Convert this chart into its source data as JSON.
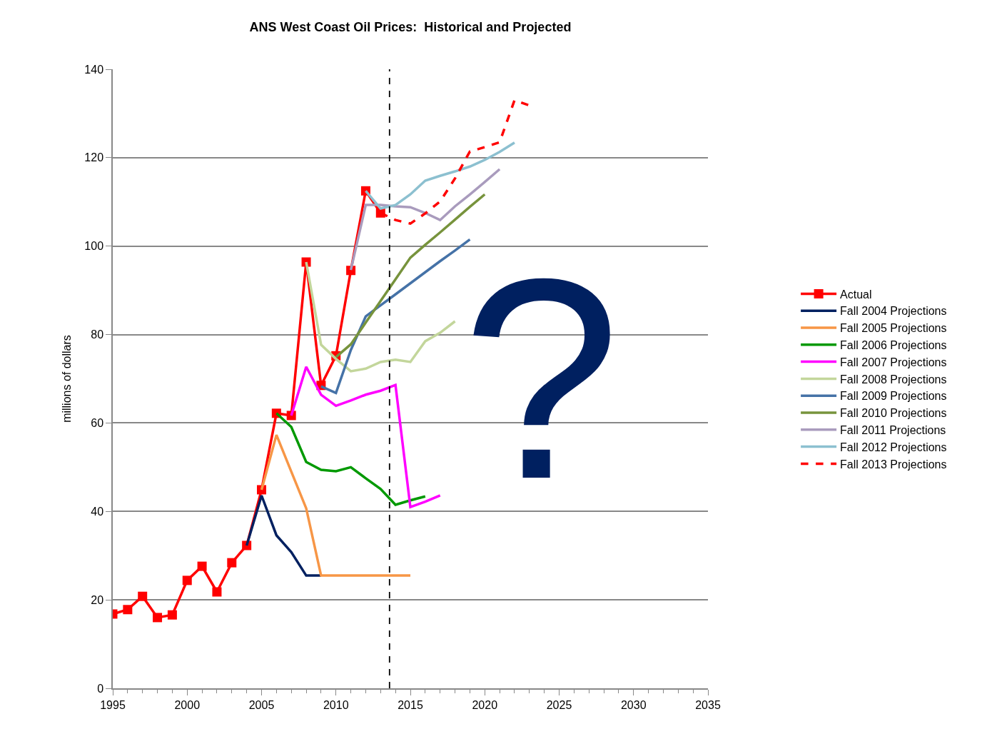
{
  "chart_data": {
    "type": "line",
    "title": "ANS West Coast Oil Prices:  Historical and Projected",
    "ylabel": "millions of dollars",
    "xlim": [
      1995,
      2035
    ],
    "xticks": [
      1995,
      2000,
      2005,
      2010,
      2015,
      2020,
      2025,
      2030,
      2035
    ],
    "ylim": [
      0,
      140
    ],
    "yticks": [
      0,
      20,
      40,
      60,
      80,
      100,
      120,
      140
    ],
    "grid": "y",
    "legend": "right",
    "ref_lines": [
      {
        "axis": "x",
        "value": 2013.6,
        "color": "#000000",
        "line_style": "dashed"
      }
    ],
    "annotations": [
      "?"
    ],
    "series": [
      {
        "name": "Actual",
        "color": "#ff0000",
        "marker": "square",
        "x": [
          1995,
          1996,
          1997,
          1998,
          1999,
          2000,
          2001,
          2002,
          2003,
          2004,
          2005,
          2006,
          2007,
          2008,
          2009,
          2010,
          2011,
          2012,
          2013
        ],
        "values": [
          16.8,
          17.8,
          20.8,
          16.0,
          16.6,
          24.4,
          27.6,
          21.8,
          28.4,
          32.3,
          44.9,
          62.2,
          61.7,
          96.4,
          68.5,
          75.2,
          94.5,
          112.5,
          107.5
        ]
      },
      {
        "name": "Fall 2004 Projections",
        "color": "#002060",
        "x": [
          2004,
          2005,
          2006,
          2007,
          2008,
          2009
        ],
        "values": [
          32.3,
          43.6,
          34.6,
          30.8,
          25.5,
          25.5
        ]
      },
      {
        "name": "Fall 2005 Projections",
        "color": "#f79646",
        "x": [
          2005,
          2006,
          2007,
          2008,
          2009,
          2010,
          2011,
          2012,
          2013,
          2014,
          2015
        ],
        "values": [
          44.9,
          57.3,
          49.0,
          40.7,
          25.5,
          25.5,
          25.5,
          25.5,
          25.5,
          25.5,
          25.5
        ]
      },
      {
        "name": "Fall 2006 Projections",
        "color": "#009900",
        "x": [
          2006,
          2007,
          2008,
          2009,
          2010,
          2011,
          2012,
          2013,
          2014,
          2015,
          2016
        ],
        "values": [
          62.2,
          59.1,
          51.2,
          49.4,
          49.1,
          50.0,
          47.5,
          45.1,
          41.5,
          42.5,
          43.4
        ]
      },
      {
        "name": "Fall 2007 Projections",
        "color": "#ff00ff",
        "x": [
          2007,
          2008,
          2009,
          2010,
          2011,
          2012,
          2013,
          2014,
          2015,
          2016,
          2017
        ],
        "values": [
          61.7,
          72.7,
          66.4,
          63.9,
          65.1,
          66.4,
          67.3,
          68.6,
          41.0,
          42.2,
          43.6
        ]
      },
      {
        "name": "Fall 2008 Projections",
        "color": "#c3d69b",
        "x": [
          2008,
          2009,
          2010,
          2011,
          2012,
          2013,
          2014,
          2015,
          2016,
          2017,
          2018
        ],
        "values": [
          96.4,
          77.7,
          74.5,
          71.7,
          72.3,
          73.8,
          74.3,
          73.8,
          78.5,
          80.4,
          83.0
        ]
      },
      {
        "name": "Fall 2009 Projections",
        "color": "#4572a7",
        "x": [
          2009,
          2010,
          2011,
          2012,
          2013,
          2014,
          2015,
          2016,
          2017,
          2018,
          2019
        ],
        "values": [
          68.3,
          66.8,
          76.5,
          84.1,
          86.6,
          89.1,
          91.6,
          94.1,
          96.6,
          99.0,
          101.5
        ]
      },
      {
        "name": "Fall 2010 Projections",
        "color": "#77933c",
        "x": [
          2010,
          2011,
          2012,
          2013,
          2014,
          2015,
          2016,
          2017,
          2018,
          2019,
          2020
        ],
        "values": [
          74.9,
          77.8,
          82.7,
          87.6,
          92.5,
          97.4,
          100.3,
          103.1,
          106.0,
          108.9,
          111.7
        ]
      },
      {
        "name": "Fall 2011 Projections",
        "color": "#a99bbd",
        "x": [
          2011,
          2012,
          2013,
          2014,
          2015,
          2016,
          2017,
          2018,
          2019,
          2020,
          2021
        ],
        "values": [
          94.6,
          109.3,
          109.3,
          109.0,
          108.8,
          107.5,
          105.9,
          109.0,
          111.7,
          114.5,
          117.4
        ]
      },
      {
        "name": "Fall 2012 Projections",
        "color": "#8cc0d0",
        "x": [
          2012,
          2013,
          2014,
          2015,
          2016,
          2017,
          2018,
          2019,
          2020,
          2021,
          2022
        ],
        "values": [
          112.5,
          108.5,
          109.3,
          111.7,
          114.8,
          115.9,
          116.9,
          118.0,
          119.5,
          121.3,
          123.4
        ]
      },
      {
        "name": "Fall 2013 Projections",
        "color": "#ff0000",
        "line_style": "dashed",
        "x": [
          2013,
          2014,
          2015,
          2016,
          2017,
          2018,
          2019,
          2020,
          2021,
          2022,
          2023
        ],
        "values": [
          107.5,
          105.9,
          105.1,
          107.4,
          110.1,
          115.3,
          121.4,
          122.4,
          123.5,
          133.0,
          131.8
        ]
      }
    ]
  }
}
